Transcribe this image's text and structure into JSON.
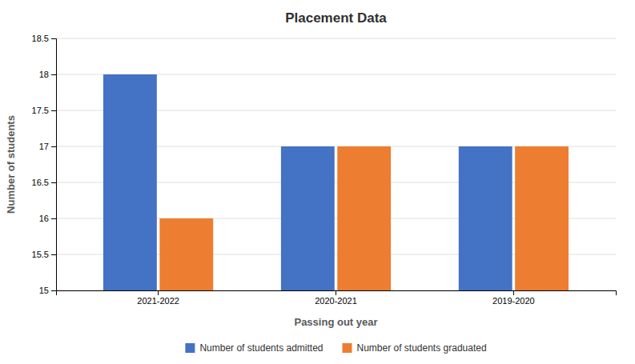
{
  "chart_data": {
    "type": "bar",
    "title": "Placement Data",
    "xlabel": "Passing out year",
    "ylabel": "Number of students",
    "categories": [
      "2021-2022",
      "2020-2021",
      "2019-2020"
    ],
    "series": [
      {
        "name": "Number of students admitted",
        "color": "#4472C4",
        "values": [
          18,
          17,
          17
        ]
      },
      {
        "name": "Number of students graduated",
        "color": "#ED7D31",
        "values": [
          16,
          17,
          17
        ]
      }
    ],
    "ylim": [
      15,
      18.5
    ],
    "yticks": [
      15,
      15.5,
      16,
      16.5,
      17,
      17.5,
      18,
      18.5
    ],
    "grid": true,
    "legend": "bottom"
  }
}
